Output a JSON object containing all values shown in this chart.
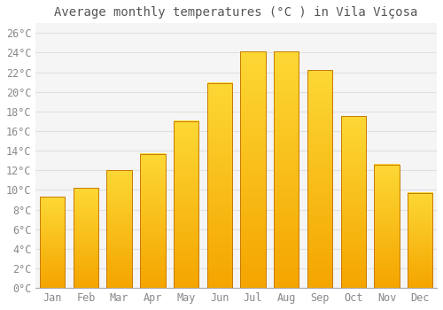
{
  "title": "Average monthly temperatures (°C ) in Vila Viçosa",
  "months": [
    "Jan",
    "Feb",
    "Mar",
    "Apr",
    "May",
    "Jun",
    "Jul",
    "Aug",
    "Sep",
    "Oct",
    "Nov",
    "Dec"
  ],
  "values": [
    9.3,
    10.2,
    12.0,
    13.7,
    17.0,
    20.9,
    24.1,
    24.1,
    22.2,
    17.5,
    12.6,
    9.7
  ],
  "bar_color_top": "#FDD835",
  "bar_color_bottom": "#F5A500",
  "bar_edge_color": "#C87A00",
  "ylim": [
    0,
    27
  ],
  "ytick_step": 2,
  "background_color": "#ffffff",
  "plot_bg_color": "#f5f5f5",
  "grid_color": "#e0e0e0",
  "title_fontsize": 10,
  "tick_fontsize": 8.5,
  "font_family": "monospace",
  "tick_color": "#888888",
  "bar_width": 0.75
}
